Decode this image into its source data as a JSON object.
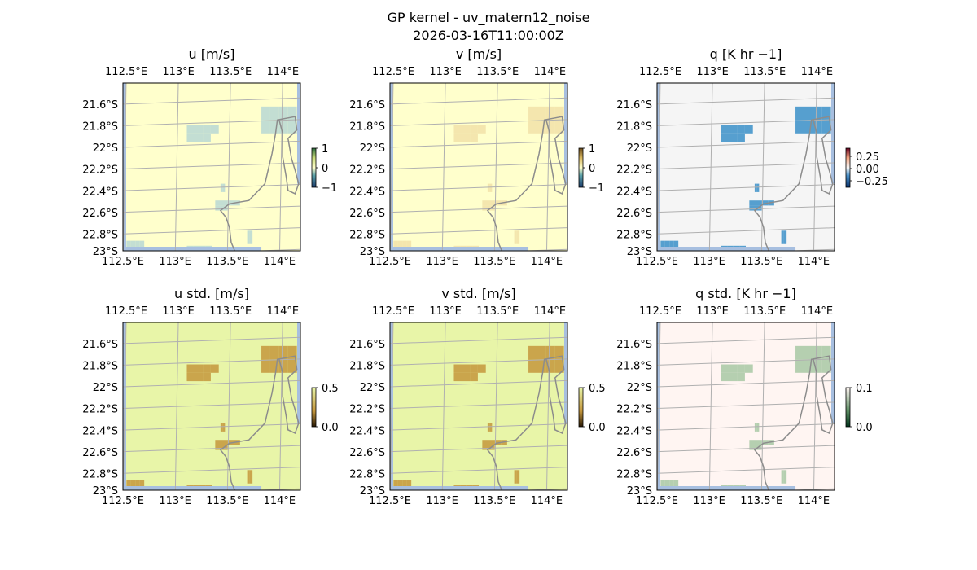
{
  "figure": {
    "title_line1": "GP kernel - uv_matern12_noise",
    "title_line2": "2026-03-16T11:00:00Z"
  },
  "chart_data": {
    "type": "heatmap",
    "map_extent": {
      "lon": [
        112.5,
        114.2
      ],
      "lat": [
        -23.0,
        -21.45
      ]
    },
    "x_tick_labels": [
      "112.5°E",
      "113°E",
      "113.5°E",
      "114°E"
    ],
    "x_tick_values": [
      112.5,
      113.0,
      113.5,
      114.0
    ],
    "y_tick_labels": [
      "21.6°S",
      "21.8°S",
      "22°S",
      "22.2°S",
      "22.4°S",
      "22.6°S",
      "22.8°S",
      "23°S"
    ],
    "y_tick_values": [
      -21.6,
      -21.8,
      -22.0,
      -22.2,
      -22.4,
      -22.6,
      -22.8,
      -23.0
    ],
    "panels": [
      {
        "title": "u [m/s]",
        "vmin": -1,
        "vmax": 1,
        "colorbar_ticks": [
          "1",
          "0",
          "−1"
        ],
        "background": "#ffffcc",
        "anomaly_color": "#b8d8d4"
      },
      {
        "title": "v [m/s]",
        "vmin": -1,
        "vmax": 1,
        "colorbar_ticks": [
          "1",
          "0",
          "−1"
        ],
        "background": "#ffffcc",
        "anomaly_color": "#f2e2a8"
      },
      {
        "title": "q [K hr −1]",
        "vmin": -0.35,
        "vmax": 0.35,
        "colorbar_ticks": [
          "0.25",
          "0.00",
          "−0.25"
        ],
        "background": "#f5f5f5",
        "anomaly_color": "#3a8fc8"
      },
      {
        "title": "u std. [m/s]",
        "vmin": 0,
        "vmax": 0.5,
        "colorbar_ticks": [
          "0.5",
          "0.0"
        ],
        "background": "#e8f5a8",
        "anomaly_color": "#c4963c"
      },
      {
        "title": "v std. [m/s]",
        "vmin": 0,
        "vmax": 0.5,
        "colorbar_ticks": [
          "0.5",
          "0.0"
        ],
        "background": "#e8f5a8",
        "anomaly_color": "#c4963c"
      },
      {
        "title": "q std. [K hr −1]",
        "vmin": 0,
        "vmax": 0.1,
        "colorbar_ticks": [
          "0.1",
          "0.0"
        ],
        "background": "#fff5f2",
        "anomaly_color": "#a8c8a4"
      }
    ]
  }
}
